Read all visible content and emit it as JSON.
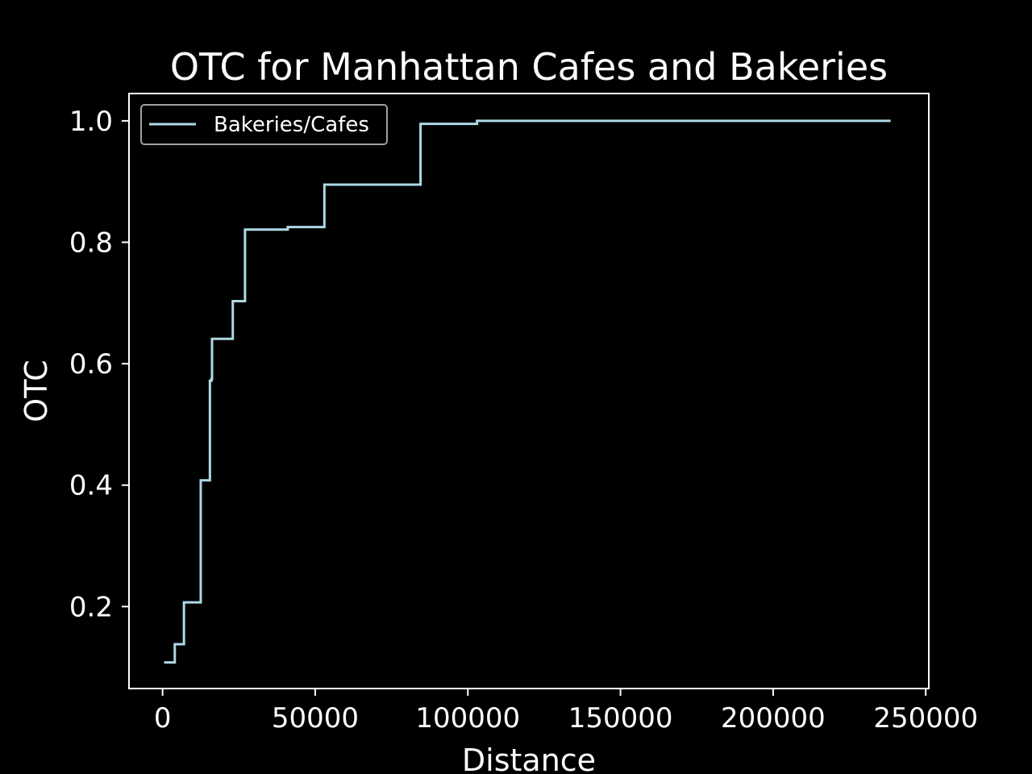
{
  "chart_data": {
    "type": "line",
    "title": "OTC for Manhattan Cafes and Bakeries",
    "xlabel": "Distance",
    "ylabel": "OTC",
    "xlim": [
      -11000,
      251000
    ],
    "ylim": [
      0.065,
      1.045
    ],
    "xticks": [
      0,
      50000,
      100000,
      150000,
      200000,
      250000
    ],
    "xtick_labels": [
      "0",
      "50000",
      "100000",
      "150000",
      "200000",
      "250000"
    ],
    "yticks": [
      0.2,
      0.4,
      0.6,
      0.8,
      1.0
    ],
    "ytick_labels": [
      "0.2",
      "0.4",
      "0.6",
      "0.8",
      "1.0"
    ],
    "grid": false,
    "legend_position": "top-left",
    "colors": {
      "background": "#000000",
      "foreground": "#ffffff",
      "legend_border": "#a0a0a0"
    },
    "series": [
      {
        "name": "Bakeries/Cafes",
        "color": "#add8e6",
        "step": true,
        "x": [
          500,
          4000,
          7000,
          12500,
          15500,
          16000,
          16200,
          23000,
          27000,
          41000,
          53000,
          84500,
          103000,
          238500
        ],
        "y": [
          0.108,
          0.138,
          0.207,
          0.408,
          0.572,
          0.575,
          0.641,
          0.703,
          0.821,
          0.825,
          0.895,
          0.995,
          1.0,
          1.0
        ]
      }
    ]
  }
}
